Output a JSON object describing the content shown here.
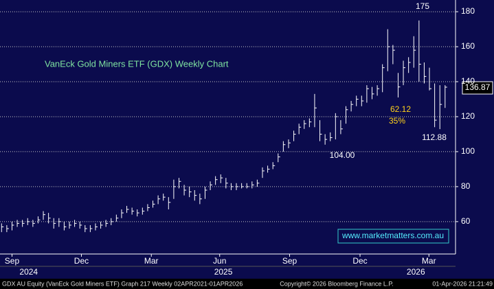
{
  "chart_data": {
    "type": "ohlc",
    "title": "VanEck Gold Miners ETF (GDX) Weekly Chart",
    "watermark": "www.marketmatters.com.au",
    "footer": [
      "GDX AU Equity (VanEck Gold Miners ETF) Graph 217 Weekly 02APR2021-01APR2026",
      "Copyright© 2026 Bloomberg Finance L.P.",
      "01-Apr-2026 21:21:49"
    ],
    "annotations": [
      "175",
      "62.12",
      "35%",
      "112.88",
      "104.00"
    ],
    "last_price_label": "136.87",
    "color": "#ffffff",
    "grid": true,
    "xlim": [
      -0.3,
      87
    ],
    "xticks": [
      {
        "value": 2,
        "label": "Sep"
      },
      {
        "value": 15.3,
        "label": "Dec"
      },
      {
        "value": 28.7,
        "label": "Mar"
      },
      {
        "value": 41.8,
        "label": "Jun"
      },
      {
        "value": 55.2,
        "label": "Sep"
      },
      {
        "value": 68.7,
        "label": "Dec"
      },
      {
        "value": 81.9,
        "label": "Mar"
      }
    ],
    "year_ticks": [
      {
        "value": 5.2,
        "label": "2024"
      },
      {
        "value": 42.5,
        "label": "2025"
      },
      {
        "value": 79.4,
        "label": "2026"
      }
    ],
    "ylim": [
      41.5,
      186.7
    ],
    "yticks": [
      60,
      80,
      100,
      120,
      140,
      160,
      180
    ],
    "high": [
      59,
      58,
      60,
      61,
      61,
      62,
      61,
      63,
      66,
      65,
      62,
      62,
      60,
      60,
      61,
      60,
      58,
      58,
      59,
      60,
      61,
      62,
      64,
      67,
      69,
      68,
      67,
      68,
      70,
      72,
      75,
      76,
      74,
      84,
      85,
      81,
      80,
      78,
      76,
      80,
      83,
      86,
      87,
      85,
      82,
      82,
      82,
      82,
      83,
      84,
      91,
      92,
      94,
      99,
      106,
      107,
      112,
      116,
      118,
      119,
      133,
      118,
      110,
      111,
      122,
      118,
      126,
      129,
      132,
      132,
      138,
      137,
      138,
      150,
      170,
      161,
      145,
      152,
      154,
      166,
      175,
      151,
      148,
      139,
      138,
      138
    ],
    "low": [
      54,
      54,
      55,
      57,
      57,
      58,
      57,
      59,
      61,
      59,
      56,
      57,
      55,
      56,
      57,
      56,
      54,
      54,
      55,
      56,
      57,
      58,
      60,
      62,
      65,
      64,
      63,
      64,
      66,
      68,
      70,
      72,
      67,
      73,
      79,
      75,
      74,
      72,
      70,
      73,
      78,
      81,
      82,
      79,
      78,
      78,
      79,
      79,
      79,
      80,
      85,
      88,
      90,
      94,
      100,
      102,
      106,
      110,
      113,
      114,
      114,
      106,
      104,
      106,
      107,
      110,
      116,
      123,
      126,
      126,
      128,
      130,
      132,
      134,
      146,
      150,
      131,
      138,
      145,
      148,
      140,
      139,
      135,
      114,
      112.88,
      125
    ],
    "close": [
      57,
      56,
      58,
      59,
      59,
      60,
      59,
      61,
      64,
      62,
      59,
      60,
      57,
      58,
      59,
      58,
      56,
      56,
      57,
      58,
      59,
      60,
      62,
      65,
      67,
      66,
      65,
      66,
      68,
      70,
      73,
      74,
      71,
      80,
      83,
      78,
      77,
      75,
      73,
      78,
      81,
      84,
      85,
      82,
      80,
      80,
      80,
      80,
      81,
      82,
      89,
      90,
      92,
      97,
      104,
      105,
      110,
      114,
      116,
      117,
      125,
      110,
      107,
      108,
      120,
      113,
      124,
      127,
      130,
      129,
      136,
      133,
      136,
      148,
      160,
      158,
      137,
      148,
      151,
      158,
      150,
      143,
      136,
      118,
      127,
      136.87
    ]
  }
}
